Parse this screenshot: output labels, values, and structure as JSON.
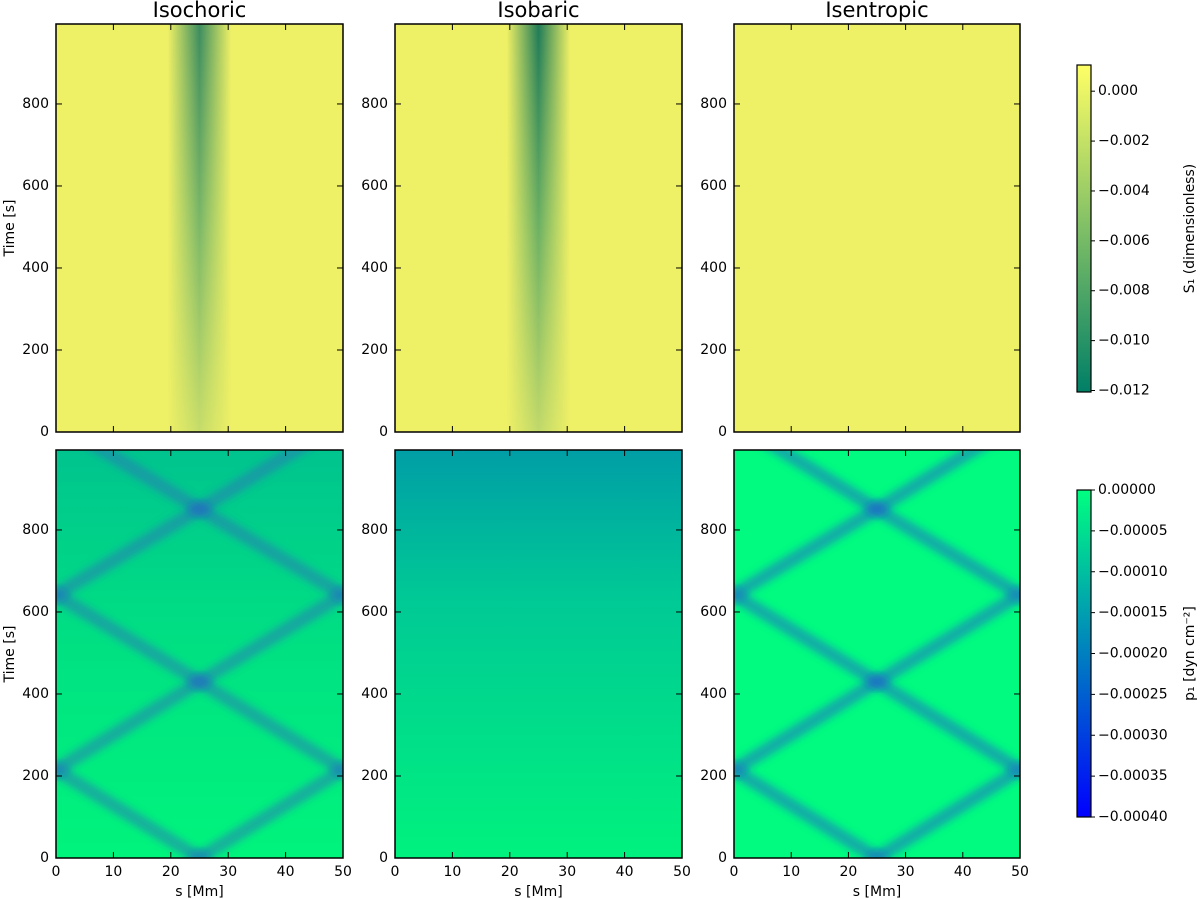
{
  "chart_data": [
    {
      "type": "heatmap",
      "title": "Isochoric",
      "ylabel": "Time [s]",
      "xlim": [
        0,
        50
      ],
      "xticks": [
        0,
        10,
        20,
        30,
        40,
        50
      ],
      "ylim": [
        0,
        995
      ],
      "yticks": [
        0,
        200,
        400,
        600,
        800
      ]
    },
    {
      "type": "heatmap",
      "title": "Isobaric",
      "xlim": [
        0,
        50
      ],
      "xticks": [
        0,
        10,
        20,
        30,
        40,
        50
      ],
      "ylim": [
        0,
        995
      ],
      "yticks": [
        0,
        200,
        400,
        600,
        800
      ]
    },
    {
      "type": "heatmap",
      "title": "Isentropic",
      "xlim": [
        0,
        50
      ],
      "xticks": [
        0,
        10,
        20,
        30,
        40,
        50
      ],
      "ylim": [
        0,
        995
      ],
      "yticks": [
        0,
        200,
        400,
        600,
        800
      ]
    },
    {
      "type": "heatmap",
      "ylabel": "Time [s]",
      "xlabel": "s [Mm]",
      "xlim": [
        0,
        50
      ],
      "xticks": [
        0,
        10,
        20,
        30,
        40,
        50
      ],
      "ylim": [
        0,
        995
      ],
      "yticks": [
        0,
        200,
        400,
        600,
        800
      ]
    },
    {
      "type": "heatmap",
      "xlabel": "s [Mm]",
      "xlim": [
        0,
        50
      ],
      "xticks": [
        0,
        10,
        20,
        30,
        40,
        50
      ],
      "ylim": [
        0,
        995
      ],
      "yticks": [
        0,
        200,
        400,
        600,
        800
      ]
    },
    {
      "type": "heatmap",
      "xlabel": "s [Mm]",
      "xlim": [
        0,
        50
      ],
      "xticks": [
        0,
        10,
        20,
        30,
        40,
        50
      ],
      "ylim": [
        0,
        995
      ],
      "yticks": [
        0,
        200,
        400,
        600,
        800
      ]
    },
    {
      "type": "colorbar",
      "label": "S₁ (dimensionless)",
      "colors": [
        "#007f66",
        "#ffff66"
      ],
      "lim": [
        -0.01206,
        0.00105
      ],
      "ticks": [
        {
          "value": 0,
          "label": "0.000"
        },
        {
          "value": -0.002,
          "label": "−0.002"
        },
        {
          "value": -0.004,
          "label": "−0.004"
        },
        {
          "value": -0.006,
          "label": "−0.006"
        },
        {
          "value": -0.008,
          "label": "−0.008"
        },
        {
          "value": -0.01,
          "label": "−0.010"
        },
        {
          "value": -0.012,
          "label": "−0.012"
        }
      ]
    },
    {
      "type": "colorbar",
      "label": "p₁ [dyn cm⁻²]",
      "colors": [
        "#0000ff",
        "#00ff80"
      ],
      "lim": [
        -0.0004,
        0
      ],
      "ticks": [
        {
          "value": 0,
          "label": "0.00000"
        },
        {
          "value": -5e-05,
          "label": "−0.00005"
        },
        {
          "value": -0.0001,
          "label": "−0.00010"
        },
        {
          "value": -0.00015,
          "label": "−0.00015"
        },
        {
          "value": -0.0002,
          "label": "−0.00020"
        },
        {
          "value": -0.00025,
          "label": "−0.00025"
        },
        {
          "value": -0.0003,
          "label": "−0.00030"
        },
        {
          "value": -0.00035,
          "label": "−0.00035"
        },
        {
          "value": -0.0004,
          "label": "−0.00040"
        }
      ]
    }
  ]
}
